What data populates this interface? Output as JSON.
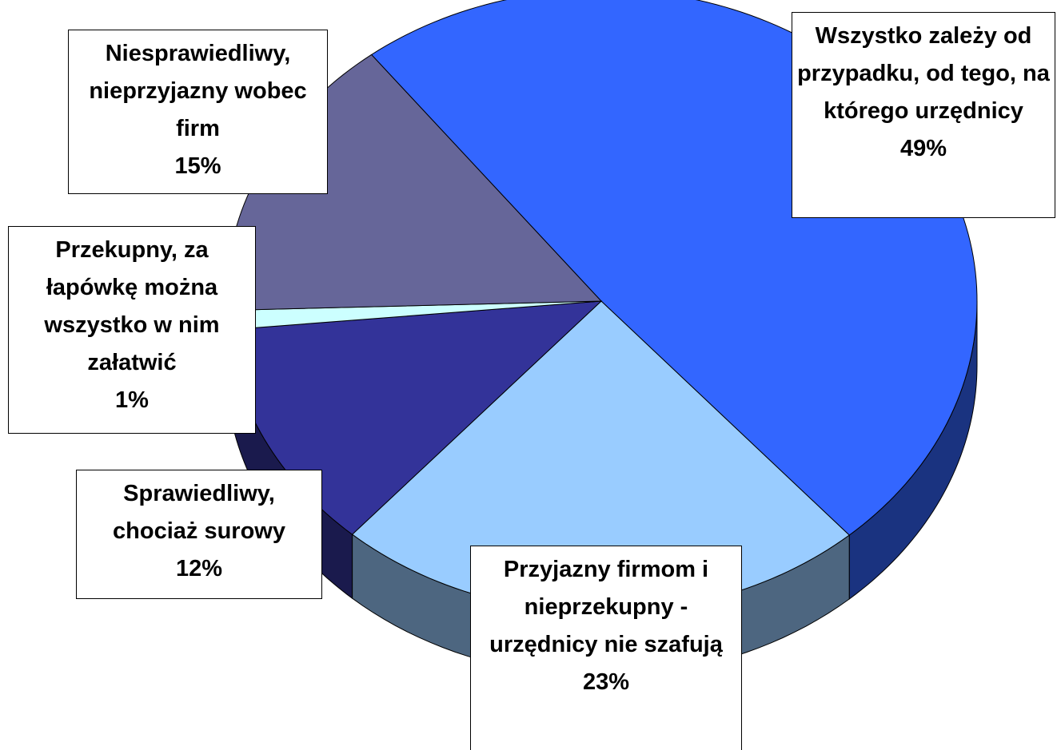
{
  "chart_data": {
    "type": "pie",
    "categories": [
      "Wszystko zależy od przypadku, od tego, na którego urzędnicy",
      "Przyjazny firmom i nieprzekupny - urzędnicy nie szafują",
      "Sprawiedliwy, chociaż surowy",
      "Przekupny, za łapówkę można wszystko w nim załatwić",
      "Niesprawiedliwy, nieprzyjazny wobec firm"
    ],
    "values": [
      49,
      23,
      12,
      1,
      15
    ],
    "value_labels": [
      "49%",
      "23%",
      "12%",
      "1%",
      "15%"
    ],
    "colors": [
      "#3366ff",
      "#99ccff",
      "#333399",
      "#ccffff",
      "#666699"
    ],
    "three_d": true
  }
}
